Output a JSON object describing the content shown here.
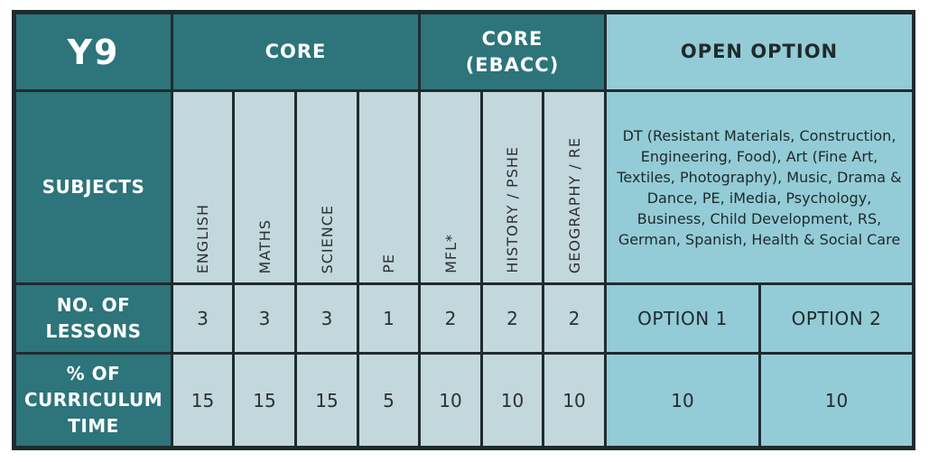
{
  "header": {
    "year": "Y9",
    "core": "CORE",
    "core_ebacc_line1": "CORE",
    "core_ebacc_line2": "(EBACC)",
    "open_option": "OPEN OPTION"
  },
  "rows": {
    "subjects_label": "SUBJECTS",
    "lessons_label_line1": "NO. OF",
    "lessons_label_line2": "LESSONS",
    "curriculum_label_line1": "% OF",
    "curriculum_label_line2": "CURRICULUM",
    "curriculum_label_line3": "TIME"
  },
  "subjects": [
    {
      "name": "ENGLISH",
      "lessons": "3",
      "curriculum": "15"
    },
    {
      "name": "MATHS",
      "lessons": "3",
      "curriculum": "15"
    },
    {
      "name": "SCIENCE",
      "lessons": "3",
      "curriculum": "15"
    },
    {
      "name": "PE",
      "lessons": "1",
      "curriculum": "5"
    },
    {
      "name": "MFL*",
      "lessons": "2",
      "curriculum": "10"
    },
    {
      "name": "HISTORY / PSHE",
      "lessons": "2",
      "curriculum": "10"
    },
    {
      "name": "GEOGRAPHY / RE",
      "lessons": "2",
      "curriculum": "10"
    }
  ],
  "open_option": {
    "subjects_text": "DT (Resistant Materials, Construction, Engineering, Food), Art (Fine Art, Textiles, Photography), Music, Drama & Dance, PE, iMedia, Psychology, Business, Child Development, RS, German, Spanish, Health & Social Care",
    "option1_label": "OPTION 1",
    "option2_label": "OPTION 2",
    "option1_curriculum": "10",
    "option2_curriculum": "10"
  },
  "colors": {
    "dark_teal": "#2d747b",
    "light_grey_blue": "#c3d8dc",
    "aqua": "#93ccd6",
    "border": "#1f2b2e"
  }
}
